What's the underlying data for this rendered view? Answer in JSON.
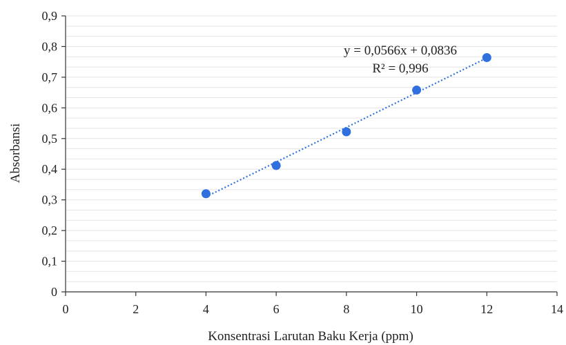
{
  "chart_data": {
    "type": "scatter",
    "title": "",
    "xlabel": "Konsentrasi Larutan Baku Kerja (ppm)",
    "ylabel": "Absorbansi",
    "xlim": [
      0,
      14
    ],
    "ylim": [
      0,
      0.9
    ],
    "x_ticks": [
      0,
      2,
      4,
      6,
      8,
      10,
      12,
      14
    ],
    "x_tick_labels": [
      "0",
      "2",
      "4",
      "6",
      "8",
      "10",
      "12",
      "14"
    ],
    "y_ticks": [
      0,
      0.1,
      0.2,
      0.3,
      0.4,
      0.5,
      0.6,
      0.7,
      0.8,
      0.9
    ],
    "y_tick_labels": [
      "0",
      "0,1",
      "0,2",
      "0,3",
      "0,4",
      "0,5",
      "0,6",
      "0,7",
      "0,8",
      "0,9"
    ],
    "grid": true,
    "series": [
      {
        "x": [
          4,
          6,
          8,
          10,
          12
        ],
        "y": [
          0.32,
          0.412,
          0.522,
          0.658,
          0.764
        ],
        "color": "#2f6fde"
      }
    ],
    "trendline": {
      "slope": 0.0566,
      "intercept": 0.0836,
      "x_range": [
        4,
        12
      ],
      "style": "dotted",
      "color": "#2f6fde"
    },
    "annotations": {
      "equation": "y = 0,0566x + 0,0836",
      "r_squared": "R² = 0,996"
    }
  }
}
